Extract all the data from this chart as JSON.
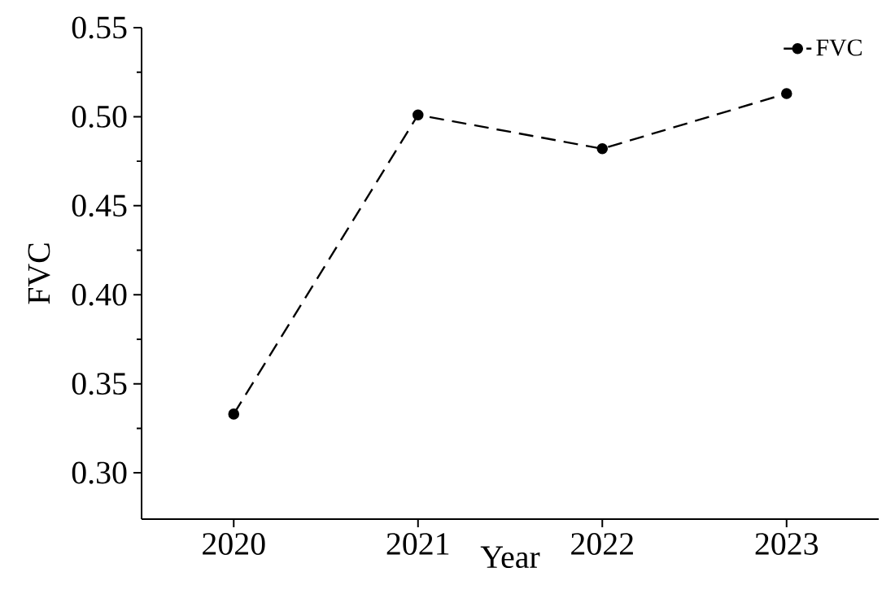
{
  "chart_data": {
    "type": "line",
    "xlabel": "Year",
    "ylabel": "FVC",
    "categories": [
      "2020",
      "2021",
      "2022",
      "2023"
    ],
    "series": [
      {
        "name": "FVC",
        "color": "#000000",
        "values": [
          0.333,
          0.501,
          0.482,
          0.513
        ]
      }
    ],
    "ylim": [
      0.274,
      0.55
    ],
    "yticks": [
      {
        "value": 0.3,
        "label": "0.30"
      },
      {
        "value": 0.35,
        "label": "0.35"
      },
      {
        "value": 0.4,
        "label": "0.40"
      },
      {
        "value": 0.45,
        "label": "0.45"
      },
      {
        "value": 0.5,
        "label": "0.50"
      },
      {
        "value": 0.55,
        "label": "0.55"
      }
    ],
    "marker": "circle",
    "line_style": "dashed",
    "legend": "top right",
    "grid": false
  }
}
